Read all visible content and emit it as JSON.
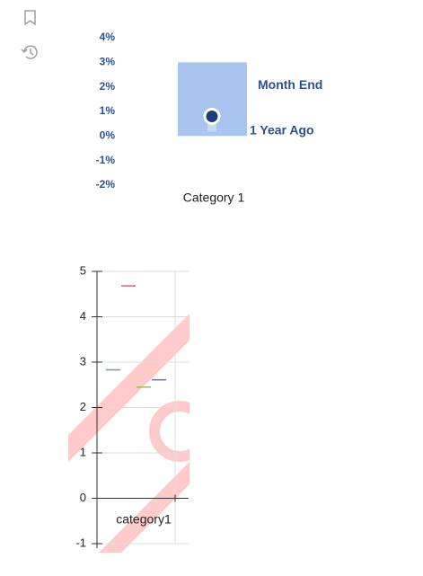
{
  "chart_data": [
    {
      "type": "bar",
      "categories": [
        "Category 1"
      ],
      "series": [
        {
          "name": "Month End",
          "color": "#a9c4ef",
          "values": [
            3
          ]
        },
        {
          "name": "1 Year Ago",
          "color": "#1f3f7a",
          "values": [
            0.8
          ],
          "marker": true
        }
      ],
      "ylim": [
        -2,
        4
      ],
      "yticks": [
        {
          "value": 4,
          "label": "4%"
        },
        {
          "value": 3,
          "label": "3%"
        },
        {
          "value": 2,
          "label": "2%"
        },
        {
          "value": 1,
          "label": "1%"
        },
        {
          "value": 0,
          "label": "0%"
        },
        {
          "value": -1,
          "label": "-1%"
        },
        {
          "value": -2,
          "label": "-2%"
        }
      ]
    },
    {
      "type": "dash",
      "categories": [
        "category1"
      ],
      "series": [
        {
          "color": "#6f8fc9",
          "values": [
            2.83
          ]
        },
        {
          "color": "#d9675d",
          "values": [
            4.68
          ]
        },
        {
          "color": "#9fb763",
          "values": [
            2.45
          ]
        },
        {
          "color": "#7b6aa6",
          "values": [
            2.61
          ]
        }
      ],
      "ylim": [
        -1,
        5
      ],
      "yticks": [
        5,
        4,
        3,
        2,
        1,
        0,
        -1
      ],
      "grid": true
    }
  ]
}
